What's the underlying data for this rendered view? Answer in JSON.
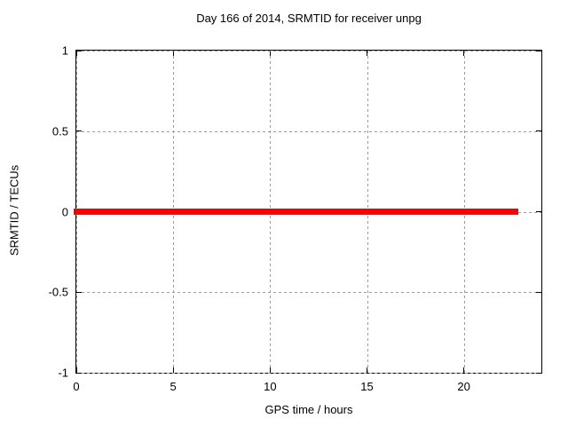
{
  "chart_data": {
    "type": "line",
    "title": "Day 166 of 2014, SRMTID for receiver unpg",
    "xlabel": "GPS time / hours",
    "ylabel": "SRMTID / TECUs",
    "xlim": [
      0,
      24
    ],
    "ylim": [
      -1,
      1
    ],
    "xticks": [
      0,
      5,
      10,
      15,
      20
    ],
    "yticks": [
      1,
      0.5,
      0,
      -0.5,
      -1
    ],
    "xtick_labels": [
      "0",
      "5",
      "10",
      "15",
      "20"
    ],
    "ytick_labels": [
      "1",
      "0.5",
      "0",
      "-0.5",
      "-1"
    ],
    "grid": true,
    "grid_style": "dashed",
    "legend": "none",
    "series": [
      {
        "name": "SRMTID",
        "color": "#ff0000",
        "x": [
          0,
          22.8
        ],
        "y": [
          0,
          0
        ]
      }
    ],
    "colors": {
      "line": "#ff0000",
      "grid": "#9c9c9c",
      "border": "#000000",
      "text": "#000000",
      "background": "#ffffff"
    },
    "line_thickness_px": 7
  }
}
